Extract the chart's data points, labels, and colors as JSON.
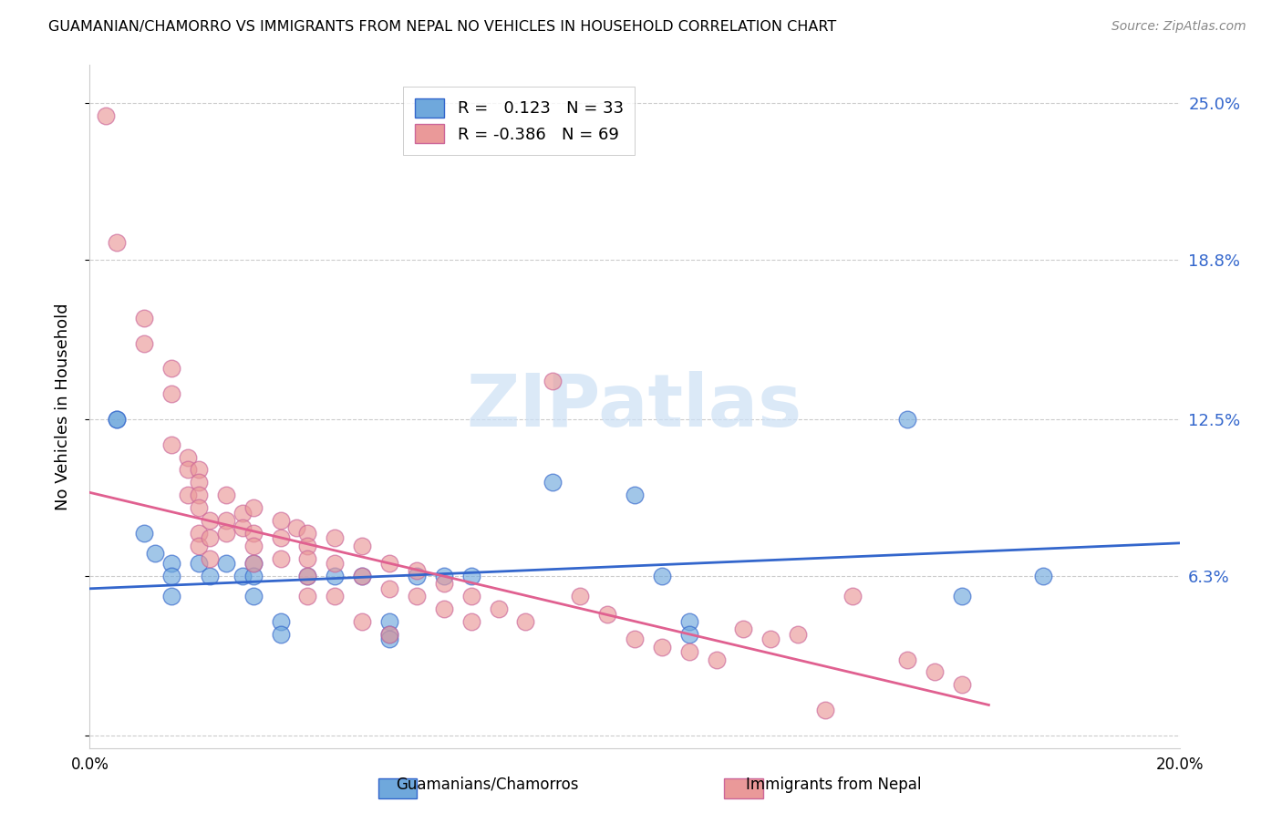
{
  "title": "GUAMANIAN/CHAMORRO VS IMMIGRANTS FROM NEPAL NO VEHICLES IN HOUSEHOLD CORRELATION CHART",
  "source": "Source: ZipAtlas.com",
  "ylabel": "No Vehicles in Household",
  "xlim": [
    0.0,
    0.2
  ],
  "ylim": [
    -0.005,
    0.265
  ],
  "yticks": [
    0.0,
    0.063,
    0.125,
    0.188,
    0.25
  ],
  "ytick_labels": [
    "",
    "6.3%",
    "12.5%",
    "18.8%",
    "25.0%"
  ],
  "xticks": [
    0.0,
    0.05,
    0.1,
    0.15,
    0.2
  ],
  "xtick_labels": [
    "0.0%",
    "",
    "",
    "",
    "20.0%"
  ],
  "color_blue": "#6fa8dc",
  "color_pink": "#ea9999",
  "color_blue_line": "#3366cc",
  "color_pink_line": "#e06090",
  "color_pink_edge": "#cc6699",
  "watermark": "ZIPatlas",
  "blue_points": [
    [
      0.005,
      0.125
    ],
    [
      0.005,
      0.125
    ],
    [
      0.01,
      0.08
    ],
    [
      0.012,
      0.072
    ],
    [
      0.015,
      0.068
    ],
    [
      0.015,
      0.063
    ],
    [
      0.015,
      0.055
    ],
    [
      0.02,
      0.068
    ],
    [
      0.022,
      0.063
    ],
    [
      0.025,
      0.068
    ],
    [
      0.028,
      0.063
    ],
    [
      0.03,
      0.068
    ],
    [
      0.03,
      0.063
    ],
    [
      0.03,
      0.055
    ],
    [
      0.035,
      0.045
    ],
    [
      0.035,
      0.04
    ],
    [
      0.04,
      0.063
    ],
    [
      0.045,
      0.063
    ],
    [
      0.05,
      0.063
    ],
    [
      0.055,
      0.045
    ],
    [
      0.055,
      0.04
    ],
    [
      0.055,
      0.038
    ],
    [
      0.06,
      0.063
    ],
    [
      0.065,
      0.063
    ],
    [
      0.07,
      0.063
    ],
    [
      0.085,
      0.1
    ],
    [
      0.1,
      0.095
    ],
    [
      0.105,
      0.063
    ],
    [
      0.11,
      0.045
    ],
    [
      0.11,
      0.04
    ],
    [
      0.15,
      0.125
    ],
    [
      0.175,
      0.063
    ],
    [
      0.16,
      0.055
    ]
  ],
  "pink_points": [
    [
      0.003,
      0.245
    ],
    [
      0.005,
      0.195
    ],
    [
      0.01,
      0.165
    ],
    [
      0.01,
      0.155
    ],
    [
      0.015,
      0.145
    ],
    [
      0.015,
      0.135
    ],
    [
      0.015,
      0.115
    ],
    [
      0.018,
      0.11
    ],
    [
      0.018,
      0.105
    ],
    [
      0.018,
      0.095
    ],
    [
      0.02,
      0.105
    ],
    [
      0.02,
      0.1
    ],
    [
      0.02,
      0.095
    ],
    [
      0.02,
      0.09
    ],
    [
      0.02,
      0.08
    ],
    [
      0.02,
      0.075
    ],
    [
      0.022,
      0.085
    ],
    [
      0.022,
      0.078
    ],
    [
      0.022,
      0.07
    ],
    [
      0.025,
      0.095
    ],
    [
      0.025,
      0.085
    ],
    [
      0.025,
      0.08
    ],
    [
      0.028,
      0.088
    ],
    [
      0.028,
      0.082
    ],
    [
      0.03,
      0.09
    ],
    [
      0.03,
      0.08
    ],
    [
      0.03,
      0.075
    ],
    [
      0.03,
      0.068
    ],
    [
      0.035,
      0.085
    ],
    [
      0.035,
      0.078
    ],
    [
      0.035,
      0.07
    ],
    [
      0.038,
      0.082
    ],
    [
      0.04,
      0.08
    ],
    [
      0.04,
      0.075
    ],
    [
      0.04,
      0.07
    ],
    [
      0.04,
      0.063
    ],
    [
      0.04,
      0.055
    ],
    [
      0.045,
      0.078
    ],
    [
      0.045,
      0.068
    ],
    [
      0.045,
      0.055
    ],
    [
      0.05,
      0.075
    ],
    [
      0.05,
      0.063
    ],
    [
      0.05,
      0.045
    ],
    [
      0.055,
      0.068
    ],
    [
      0.055,
      0.058
    ],
    [
      0.055,
      0.04
    ],
    [
      0.06,
      0.065
    ],
    [
      0.06,
      0.055
    ],
    [
      0.065,
      0.06
    ],
    [
      0.065,
      0.05
    ],
    [
      0.07,
      0.055
    ],
    [
      0.07,
      0.045
    ],
    [
      0.075,
      0.05
    ],
    [
      0.08,
      0.045
    ],
    [
      0.085,
      0.14
    ],
    [
      0.09,
      0.055
    ],
    [
      0.095,
      0.048
    ],
    [
      0.1,
      0.038
    ],
    [
      0.105,
      0.035
    ],
    [
      0.11,
      0.033
    ],
    [
      0.115,
      0.03
    ],
    [
      0.12,
      0.042
    ],
    [
      0.125,
      0.038
    ],
    [
      0.13,
      0.04
    ],
    [
      0.135,
      0.01
    ],
    [
      0.14,
      0.055
    ],
    [
      0.15,
      0.03
    ],
    [
      0.155,
      0.025
    ],
    [
      0.16,
      0.02
    ]
  ],
  "blue_line_x": [
    0.0,
    0.2
  ],
  "blue_line_y": [
    0.058,
    0.076
  ],
  "pink_line_x": [
    0.0,
    0.165
  ],
  "pink_line_y": [
    0.096,
    0.012
  ],
  "legend_labels": [
    "R =   0.123   N = 33",
    "R = -0.386   N = 69"
  ],
  "bottom_legend_labels": [
    "Guamanians/Chamorros",
    "Immigrants from Nepal"
  ]
}
